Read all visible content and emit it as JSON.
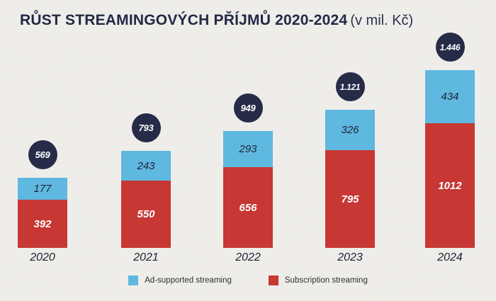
{
  "title": {
    "main": "RŮST STREAMINGOVÝCH PŘÍJMŮ 2020-2024",
    "suffix": "(v mil. Kč)"
  },
  "colors": {
    "background": "#f0eeea",
    "blue": "#5fb8e0",
    "red": "#c73733",
    "navy_badge": "#262b48",
    "title_text": "#222946",
    "white_text": "#ffffff",
    "dark_label": "#1d2236"
  },
  "legend": {
    "items": [
      {
        "label": "Ad-supported streaming",
        "color": "#5fb8e0"
      },
      {
        "label": "Subscription streaming",
        "color": "#c73733"
      }
    ]
  },
  "chart_data": {
    "type": "bar",
    "stacked": true,
    "title": "RŮST STREAMINGOVÝCH PŘÍJMŮ 2020-2024",
    "subtitle": "(v mil. Kč)",
    "unit": "mil. Kč",
    "categories": [
      "2020",
      "2021",
      "2022",
      "2023",
      "2024"
    ],
    "series": [
      {
        "name": "Ad-supported streaming",
        "color": "#5fb8e0",
        "values": [
          177,
          243,
          293,
          326,
          434
        ]
      },
      {
        "name": "Subscription streaming",
        "color": "#c73733",
        "values": [
          392,
          550,
          656,
          795,
          1012
        ]
      }
    ],
    "totals": [
      569,
      793,
      949,
      1121,
      1446
    ],
    "total_labels": [
      "569",
      "793",
      "949",
      "1.121",
      "1.446"
    ],
    "xlabel": "",
    "ylabel": "",
    "ylim": [
      0,
      1500
    ],
    "grid": false,
    "legend_position": "bottom",
    "value_labels": "inside segments",
    "total_labels_style": "navy circle badge above each bar"
  }
}
